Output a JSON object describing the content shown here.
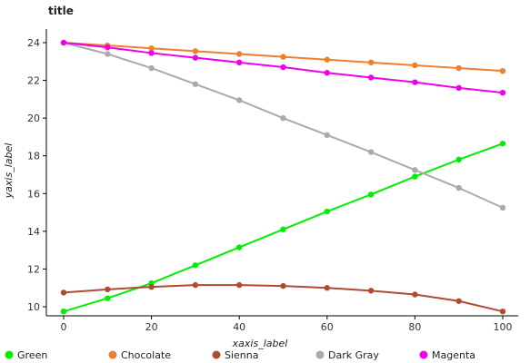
{
  "chart_data": {
    "type": "scatter",
    "title": "title",
    "xlabel": "xaxis_label",
    "ylabel": "yaxis_label",
    "xlim": [
      0,
      100
    ],
    "ylim": [
      9.5,
      24.5
    ],
    "xticks": [
      0,
      20,
      40,
      60,
      80,
      100
    ],
    "yticks": [
      10,
      12,
      14,
      16,
      18,
      20,
      22,
      24
    ],
    "grid": false,
    "legend_position": "bottom-left",
    "series": [
      {
        "name": "Green",
        "color": "#00ee00",
        "x": [
          0,
          10,
          20,
          30,
          40,
          50,
          60,
          70,
          80,
          90,
          100
        ],
        "y": [
          9.75,
          10.45,
          11.25,
          12.2,
          13.15,
          14.1,
          15.05,
          15.95,
          16.9,
          17.8,
          18.65
        ]
      },
      {
        "name": "Chocolate",
        "color": "#ee7f2c",
        "x": [
          0,
          10,
          20,
          30,
          40,
          50,
          60,
          70,
          80,
          90,
          100
        ],
        "y": [
          24.0,
          23.85,
          23.7,
          23.55,
          23.4,
          23.25,
          23.1,
          22.95,
          22.8,
          22.65,
          22.5
        ]
      },
      {
        "name": "Sienna",
        "color": "#b04a32",
        "x": [
          0,
          10,
          20,
          30,
          40,
          50,
          60,
          70,
          80,
          90,
          100
        ],
        "y": [
          10.75,
          10.92,
          11.05,
          11.15,
          11.15,
          11.1,
          11.0,
          10.85,
          10.65,
          10.3,
          9.75
        ]
      },
      {
        "name": "Dark Gray",
        "color": "#aaaaaa",
        "x": [
          0,
          10,
          20,
          30,
          40,
          50,
          60,
          70,
          80,
          90,
          100
        ],
        "y": [
          24.0,
          23.4,
          22.65,
          21.8,
          20.95,
          20.0,
          19.1,
          18.2,
          17.25,
          16.3,
          15.25
        ]
      },
      {
        "name": "Magenta",
        "color": "#ee00ee",
        "x": [
          0,
          10,
          20,
          30,
          40,
          50,
          60,
          70,
          80,
          90,
          100
        ],
        "y": [
          24.0,
          23.75,
          23.45,
          23.2,
          22.95,
          22.7,
          22.4,
          22.15,
          21.9,
          21.6,
          21.35
        ]
      }
    ],
    "legend": [
      "Green",
      "Chocolate",
      "Sienna",
      "Dark Gray",
      "Magenta"
    ]
  }
}
